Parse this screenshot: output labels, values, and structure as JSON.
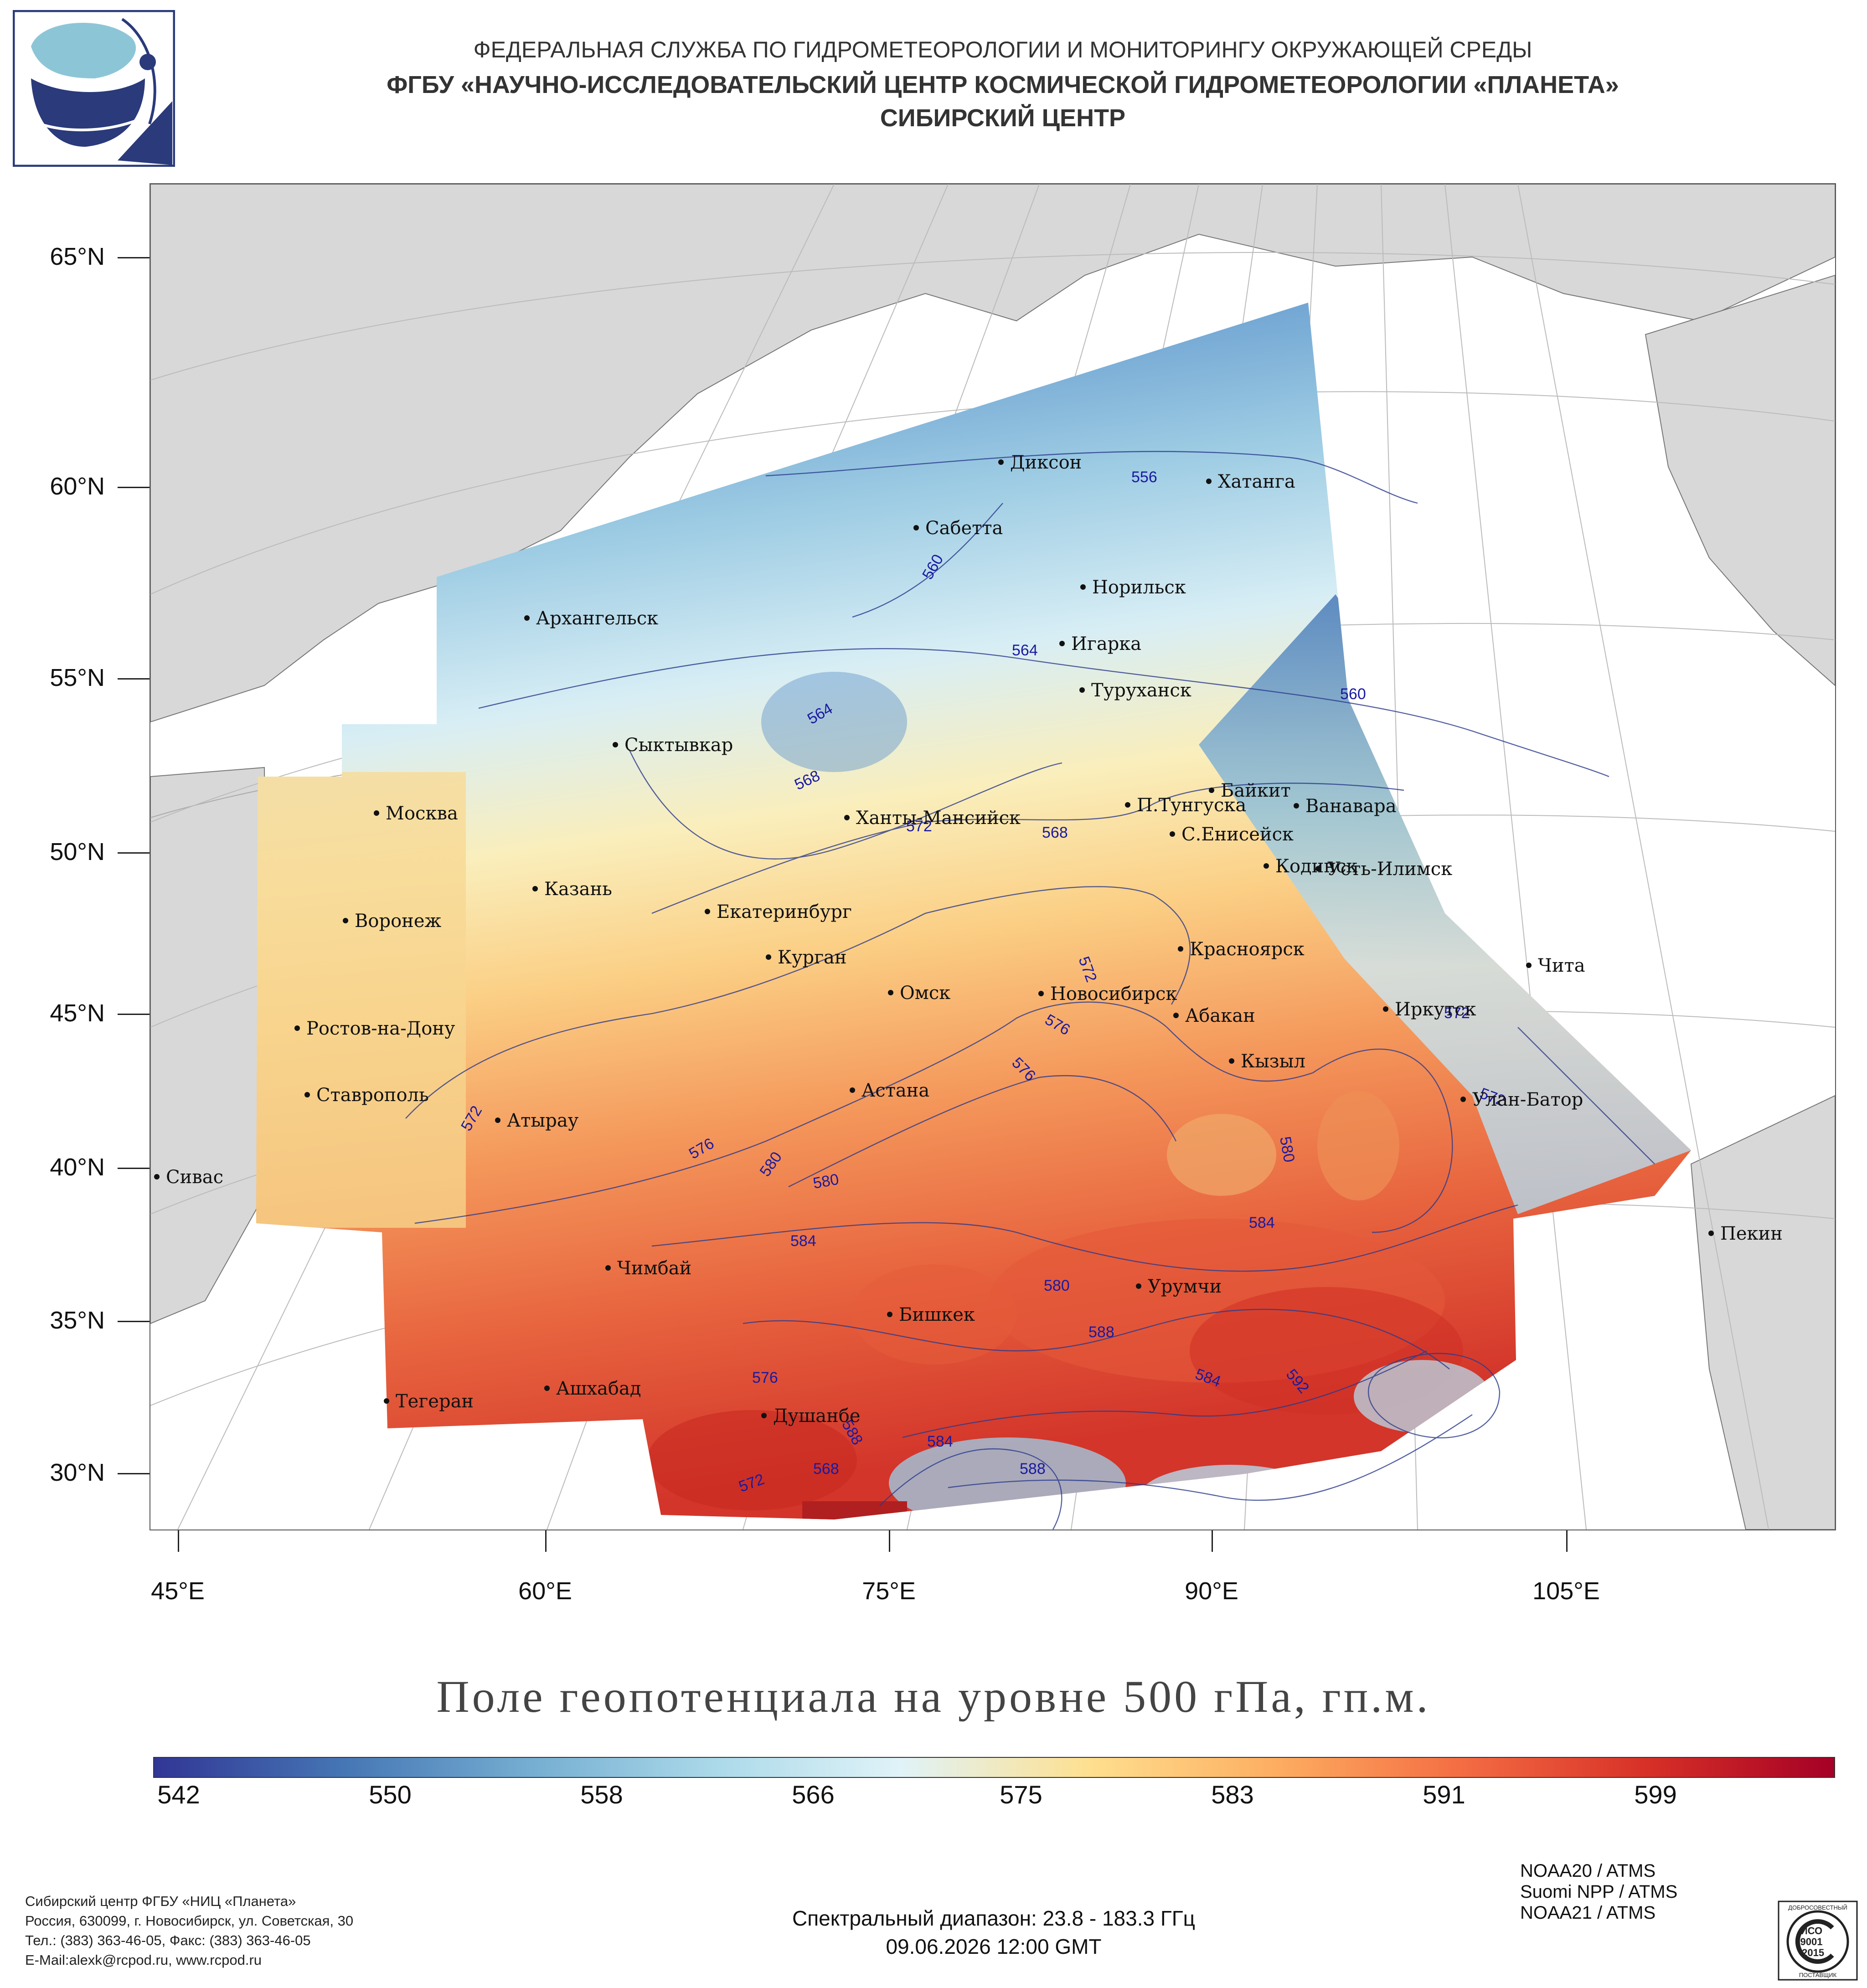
{
  "header": {
    "line1": "ФЕДЕРАЛЬНАЯ СЛУЖБА ПО ГИДРОМЕТЕОРОЛОГИИ И МОНИТОРИНГУ ОКРУЖАЮЩЕЙ СРЕДЫ",
    "line2": "ФГБУ «НАУЧНО-ИССЛЕДОВАТЕЛЬСКИЙ ЦЕНТР КОСМИЧЕСКОЙ ГИДРОМЕТЕОРОЛОГИИ «ПЛАНЕТА»",
    "line3": "СИБИРСКИЙ ЦЕНТР"
  },
  "logo": {
    "icon": "planeta-logo-icon",
    "colors": {
      "navy": "#2a3a7a",
      "light_blue": "#8cc6d6"
    }
  },
  "map": {
    "lat_labels": [
      "65°N",
      "60°N",
      "55°N",
      "50°N",
      "45°N",
      "40°N",
      "35°N",
      "30°N"
    ],
    "lon_labels": [
      "45°E",
      "60°E",
      "75°E",
      "90°E",
      "105°E"
    ],
    "cities": [
      "Диксон",
      "Хатанга",
      "Сабетта",
      "Норильск",
      "Архангельск",
      "Игарка",
      "Туруханск",
      "Сыктывкар",
      "Байкит",
      "П.Тунгуска",
      "Ванавара",
      "Москва",
      "Ханты-Мансийск",
      "С.Енисейск",
      "Кодинск",
      "Усть-Илимск",
      "Казань",
      "Екатеринбург",
      "Воронеж",
      "Красноярск",
      "Курган",
      "Чита",
      "Омск",
      "Новосибирск",
      "Иркутск",
      "Абакан",
      "Ростов-на-Дону",
      "Кызыл",
      "Астана",
      "Ставрополь",
      "Улан-Батор",
      "Атырау",
      "Сивас",
      "Пекин",
      "Чимбай",
      "Урумчи",
      "Бишкек",
      "Ашхабад",
      "Тегеран",
      "Душанбе"
    ],
    "isoline_labels": [
      "556",
      "560",
      "560",
      "564",
      "564",
      "568",
      "572",
      "568",
      "572",
      "576",
      "572",
      "572",
      "576",
      "580",
      "580",
      "576",
      "580",
      "584",
      "584",
      "580",
      "588",
      "592",
      "584",
      "576",
      "588",
      "584",
      "588",
      "572",
      "568",
      "572"
    ],
    "colors": {
      "land": "#d8d8d8",
      "sea": "#ffffff",
      "graticule": "#bbbbbb",
      "isoline": "#2a3a8c"
    }
  },
  "title": "Поле геопотенциала на уровне 500 гПа, гп.м.",
  "colorbar": {
    "ticks": [
      "542",
      "550",
      "558",
      "566",
      "575",
      "583",
      "591",
      "599"
    ],
    "colors": [
      "#313695",
      "#4575b4",
      "#74add1",
      "#abd9e9",
      "#e0f3f8",
      "#fee090",
      "#fdae61",
      "#f46d43",
      "#d73027",
      "#a50026"
    ]
  },
  "footer": {
    "org_lines": [
      "Сибирский центр ФГБУ «НИЦ «Планета»",
      "Россия, 630099, г. Новосибирск, ул. Советская, 30",
      "Тел.: (383) 363-46-05, Факс: (383) 363-46-05",
      "E-Mail:alexk@rcpod.ru, www.rcpod.ru"
    ],
    "spectral": "Спектральный диапазон: 23.8 - 183.3 ГГц",
    "datetime": "09.06.2026 12:00 GMT",
    "satellites": [
      "NOAA20 / ATMS",
      "Suomi NPP / ATMS",
      "NOAA21 / ATMS"
    ],
    "iso_badge": {
      "top": "ДОБРОСОВЕСТНЫЙ",
      "line1": "ИСО",
      "line2": "9001",
      "line3": "-2015",
      "bottom": "ПОСТАВЩИК"
    }
  }
}
